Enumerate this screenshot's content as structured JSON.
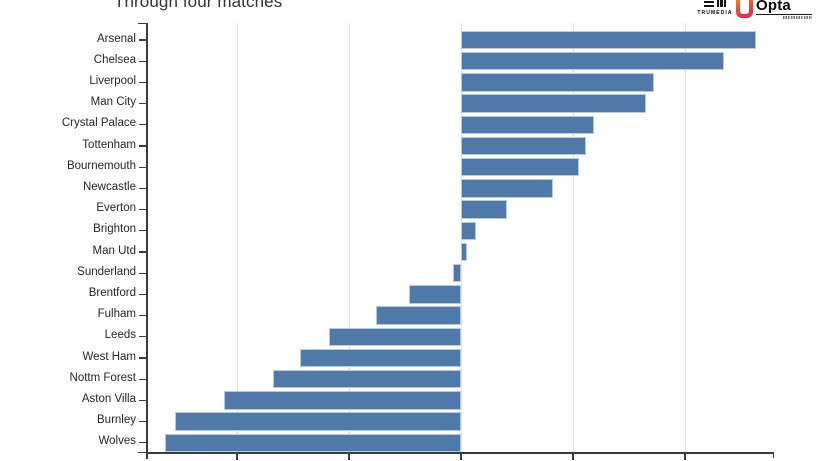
{
  "header": {
    "subtitle": "Through four matches",
    "logos": {
      "trumedia_label": "TRUMEDIA",
      "opta_label": "Opta"
    }
  },
  "chart_data": {
    "type": "bar",
    "orientation": "horizontal",
    "title": "Through four matches",
    "subtitle_note": "top of title block cropped out of view",
    "categories": [
      "Arsenal",
      "Chelsea",
      "Liverpool",
      "Man City",
      "Crystal Palace",
      "Tottenham",
      "Bournemouth",
      "Newcastle",
      "Everton",
      "Brighton",
      "Man Utd",
      "Sunderland",
      "Brentford",
      "Fulham",
      "Leeds",
      "West Ham",
      "Nottm Forest",
      "Aston Villa",
      "Burnley",
      "Wolves"
    ],
    "values": [
      2.63,
      2.35,
      1.72,
      1.65,
      1.19,
      1.12,
      1.05,
      0.82,
      0.41,
      0.13,
      0.05,
      -0.07,
      -0.46,
      -0.76,
      -1.18,
      -1.44,
      -1.68,
      -2.12,
      -2.55,
      -2.64
    ],
    "value_units": "x-axis gridline units (tick labels cropped below image edge)",
    "x_tick_labels_visible": false,
    "xlim": [
      -2.79,
      2.79
    ],
    "gridlines_x": [
      -2,
      -1,
      0,
      1,
      2
    ],
    "grid": "vertical gridlines on",
    "legend": "none",
    "xlabel": "",
    "ylabel": ""
  },
  "colors": {
    "bar_fill": "#4e79a8",
    "bar_edge": "#b9cade",
    "gridline": "#e2e2e2",
    "axis": "#3b3b3b",
    "label_text": "#262626",
    "title_text": "#333333",
    "opta_gradient_top": "#f7a823",
    "opta_gradient_bottom": "#e81f63",
    "background": "#ffffff"
  }
}
